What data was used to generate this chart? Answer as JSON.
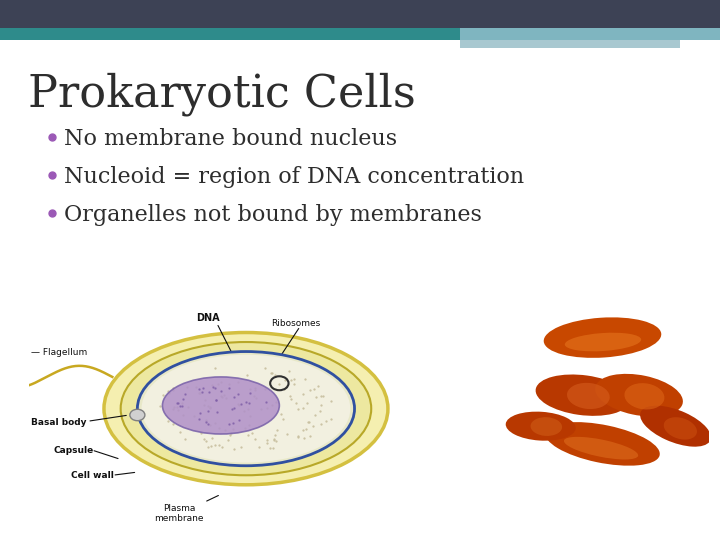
{
  "title": "Prokaryotic Cells",
  "title_fontsize": 32,
  "title_color": "#2d2d2d",
  "bullet_points": [
    "No membrane bound nucleus",
    "Nucleoid = region of DNA concentration",
    "Organelles not bound by membranes"
  ],
  "bullet_color": "#2d2d2d",
  "bullet_dot_color": "#9b59b6",
  "bullet_fontsize": 16,
  "background_color": "#ffffff",
  "header_bar_color": "#3d4255",
  "teal_bar_color": "#2e8b8b",
  "accent_bar1_color": "#7fb5c0",
  "accent_bar2_color": "#a8c8d0"
}
